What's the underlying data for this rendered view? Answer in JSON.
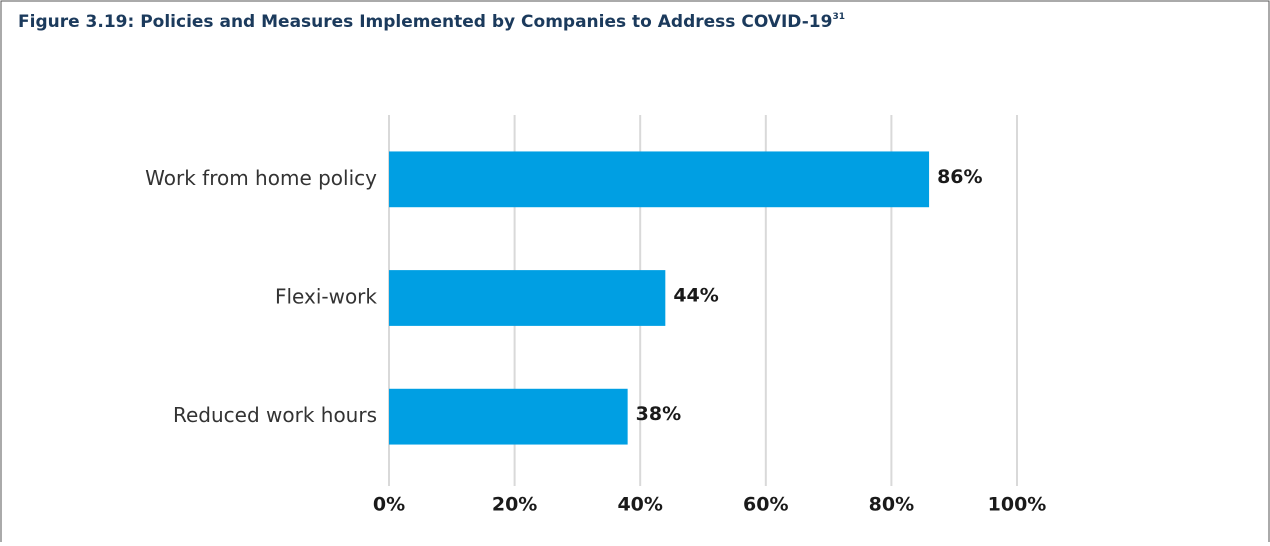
{
  "chart_data": {
    "type": "bar",
    "orientation": "horizontal",
    "title": "Figure 3.19: Policies and Measures Implemented by Companies to Address COVID-19",
    "title_footnote": "31",
    "categories": [
      "Work from home policy",
      "Flexi-work",
      "Reduced work hours"
    ],
    "values": [
      86,
      44,
      38
    ],
    "value_labels": [
      "86%",
      "44%",
      "38%"
    ],
    "color": "#009fe3",
    "xlim": [
      0,
      100
    ],
    "xticks": [
      {
        "value": 0,
        "label": "0%"
      },
      {
        "value": 20,
        "label": "20%"
      },
      {
        "value": 40,
        "label": "40%"
      },
      {
        "value": 60,
        "label": "60%"
      },
      {
        "value": 80,
        "label": "80%"
      },
      {
        "value": 100,
        "label": "100%"
      }
    ],
    "grid": true
  }
}
